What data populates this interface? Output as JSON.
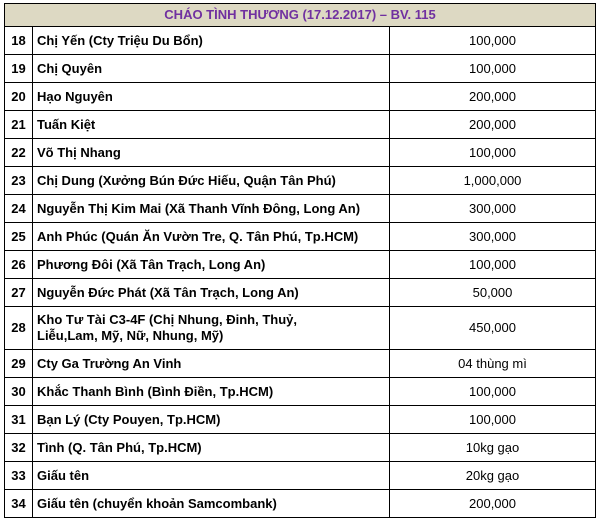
{
  "title": "CHÁO TÌNH THƯƠNG (17.12.2017) – BV. 115",
  "colors": {
    "title_background": "#ddd9c3",
    "title_text": "#7030a0",
    "border": "#000000"
  },
  "rows": [
    {
      "no": "18",
      "name": "Chị Yến (Cty Triệu Du Bổn)",
      "amount": "100,000"
    },
    {
      "no": "19",
      "name": "Chị Quyên",
      "amount": "100,000"
    },
    {
      "no": "20",
      "name": "Hạo Nguyên",
      "amount": "200,000"
    },
    {
      "no": "21",
      "name": "Tuấn Kiệt",
      "amount": "200,000"
    },
    {
      "no": "22",
      "name": "Võ Thị Nhang",
      "amount": "100,000"
    },
    {
      "no": "23",
      "name": "Chị Dung (Xưởng Bún Đức Hiếu, Quận Tân Phú)",
      "amount": "1,000,000"
    },
    {
      "no": "24",
      "name": "Nguyễn Thị Kim Mai (Xã Thanh Vĩnh Đông, Long An)",
      "amount": "300,000"
    },
    {
      "no": "25",
      "name": "Anh Phúc (Quán Ăn Vườn Tre, Q. Tân Phú, Tp.HCM)",
      "amount": "300,000"
    },
    {
      "no": "26",
      "name": "Phương Đôi (Xã Tân Trạch, Long An)",
      "amount": "100,000"
    },
    {
      "no": "27",
      "name": "Nguyễn Đức Phát (Xã Tân Trạch, Long An)",
      "amount": "50,000"
    },
    {
      "no": "28",
      "name": "Kho Tư Tài C3-4F (Chị Nhung, Đinh, Thuỷ,\nLiễu,Lam, Mỹ, Nữ, Nhung, Mỹ)",
      "amount": "450,000",
      "tall": true
    },
    {
      "no": "29",
      "name": "Cty Ga Trường An Vinh",
      "amount": "04 thùng mì"
    },
    {
      "no": "30",
      "name": "Khắc Thanh Bình (Bình Điền, Tp.HCM)",
      "amount": "100,000"
    },
    {
      "no": "31",
      "name": "Bạn Lý (Cty Pouyen, Tp.HCM)",
      "amount": "100,000"
    },
    {
      "no": "32",
      "name": "Tình (Q. Tân Phú, Tp.HCM)",
      "amount": "10kg gạo"
    },
    {
      "no": "33",
      "name": "Giấu tên",
      "amount": "20kg gạo"
    },
    {
      "no": "34",
      "name": "Giấu tên (chuyển khoản Samcombank)",
      "amount": "200,000"
    }
  ]
}
